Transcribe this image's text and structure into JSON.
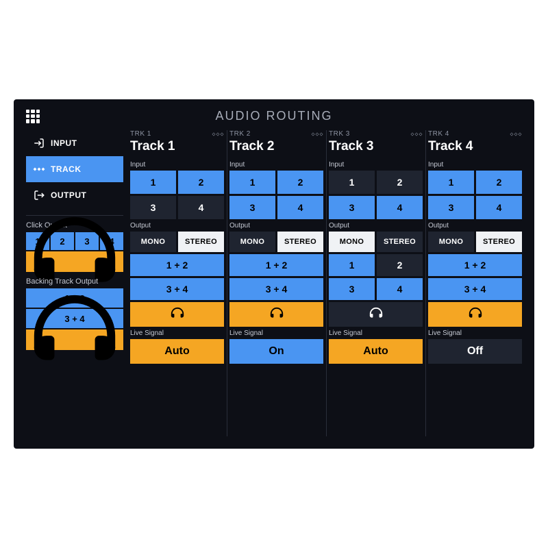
{
  "header": {
    "title": "AUDIO ROUTING"
  },
  "colors": {
    "blue": "#4a95f2",
    "yellow": "#f5a623",
    "dark": "#1f2430",
    "white": "#f0f2f5",
    "bg": "#0d0f16"
  },
  "sidebar": {
    "nav": [
      {
        "label": "INPUT",
        "active": false
      },
      {
        "label": "TRACK",
        "active": true
      },
      {
        "label": "OUTPUT",
        "active": false
      }
    ],
    "click_output": {
      "label": "Click Output",
      "cells": [
        "1",
        "2",
        "3",
        "4"
      ],
      "headphones_color": "yellow"
    },
    "backing_track_output": {
      "label": "Backing Track Output",
      "pairs": [
        "1 + 2",
        "3 + 4"
      ],
      "headphones_color": "yellow"
    }
  },
  "section_labels": {
    "input": "Input",
    "output": "Output",
    "live_signal": "Live Signal"
  },
  "output_modes": {
    "mono": "MONO",
    "stereo": "STEREO"
  },
  "tracks": [
    {
      "code": "TRK 1",
      "name": "Track 1",
      "inputs": [
        {
          "label": "1",
          "color": "blue"
        },
        {
          "label": "2",
          "color": "blue"
        },
        {
          "label": "3",
          "color": "dark"
        },
        {
          "label": "4",
          "color": "dark"
        }
      ],
      "mode": "stereo",
      "stereo_pairs": [
        {
          "label": "1 + 2",
          "color": "blue"
        },
        {
          "label": "3 + 4",
          "color": "blue"
        }
      ],
      "headphones_color": "yellow",
      "live": {
        "label": "Auto",
        "color": "yellow"
      }
    },
    {
      "code": "TRK 2",
      "name": "Track 2",
      "inputs": [
        {
          "label": "1",
          "color": "blue"
        },
        {
          "label": "2",
          "color": "blue"
        },
        {
          "label": "3",
          "color": "blue"
        },
        {
          "label": "4",
          "color": "blue"
        }
      ],
      "mode": "stereo",
      "stereo_pairs": [
        {
          "label": "1 + 2",
          "color": "blue"
        },
        {
          "label": "3 + 4",
          "color": "blue"
        }
      ],
      "headphones_color": "yellow",
      "live": {
        "label": "On",
        "color": "blue"
      }
    },
    {
      "code": "TRK 3",
      "name": "Track 3",
      "inputs": [
        {
          "label": "1",
          "color": "dark"
        },
        {
          "label": "2",
          "color": "dark"
        },
        {
          "label": "3",
          "color": "blue"
        },
        {
          "label": "4",
          "color": "blue"
        }
      ],
      "mode": "mono",
      "mono_cells": [
        {
          "label": "1",
          "color": "blue"
        },
        {
          "label": "2",
          "color": "dark"
        },
        {
          "label": "3",
          "color": "blue"
        },
        {
          "label": "4",
          "color": "blue"
        }
      ],
      "headphones_color": "dark",
      "live": {
        "label": "Auto",
        "color": "yellow"
      }
    },
    {
      "code": "TRK 4",
      "name": "Track 4",
      "inputs": [
        {
          "label": "1",
          "color": "blue"
        },
        {
          "label": "2",
          "color": "blue"
        },
        {
          "label": "3",
          "color": "blue"
        },
        {
          "label": "4",
          "color": "blue"
        }
      ],
      "mode": "stereo",
      "stereo_pairs": [
        {
          "label": "1 + 2",
          "color": "blue"
        },
        {
          "label": "3 + 4",
          "color": "blue"
        }
      ],
      "headphones_color": "yellow",
      "live": {
        "label": "Off",
        "color": "dark"
      }
    }
  ]
}
